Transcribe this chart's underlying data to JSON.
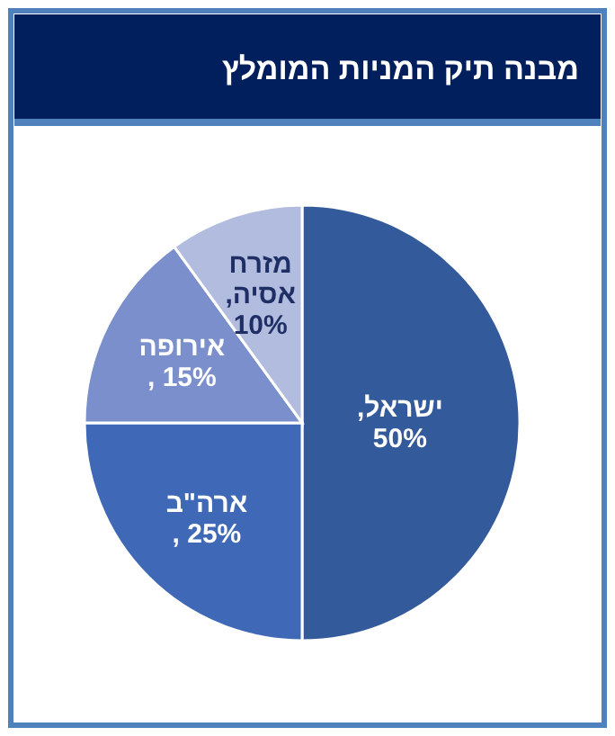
{
  "chart_data": {
    "type": "pie",
    "title": "מבנה תיק המניות המומלץ",
    "categories": [
      "ישראל",
      "ארה\"ב",
      "אירופה",
      "מזרח אסיה"
    ],
    "values": [
      50,
      25,
      15,
      10
    ],
    "value_labels": [
      ", 50%",
      "25% ,",
      "15% ,",
      ", 10%"
    ],
    "colors": [
      "#335a9a",
      "#3f69b6",
      "#7b8fcc",
      "#b1bcdf"
    ]
  }
}
